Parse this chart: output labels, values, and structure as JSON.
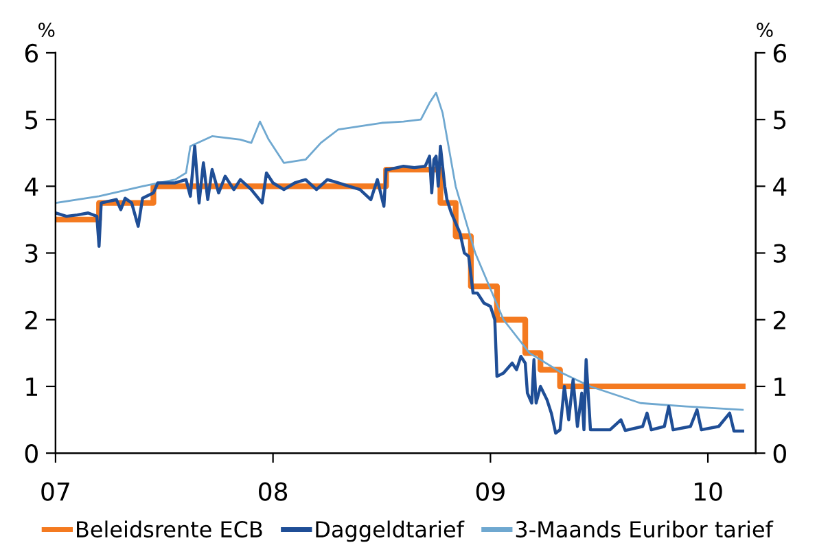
{
  "chart_data": {
    "type": "line",
    "ylabel": "%",
    "y2label": "%",
    "xlim": [
      2007.0,
      2010.22
    ],
    "xticks": [
      {
        "value": 2007,
        "label": "07"
      },
      {
        "value": 2008,
        "label": "08"
      },
      {
        "value": 2009,
        "label": "09"
      },
      {
        "value": 2010,
        "label": "10"
      }
    ],
    "ylim": [
      0,
      6
    ],
    "yticks": [
      0,
      1,
      2,
      3,
      4,
      5,
      6
    ],
    "y2lim": [
      0,
      6
    ],
    "y2ticks": [
      0,
      1,
      2,
      3,
      4,
      5,
      6
    ],
    "grid": false,
    "legend": "bottom",
    "marker": "none",
    "line_style": "solid",
    "series": [
      {
        "name": "Beleidsrente ECB",
        "type": "step",
        "color": "#f47a20",
        "x": [
          2007.0,
          2007.2,
          2007.45,
          2008.52,
          2008.77,
          2008.84,
          2008.91,
          2009.03,
          2009.16,
          2009.23,
          2009.32,
          2010.16
        ],
        "values": [
          3.5,
          3.75,
          4.0,
          4.25,
          3.75,
          3.25,
          2.5,
          2.0,
          1.5,
          1.25,
          1.0,
          1.0
        ]
      },
      {
        "name": "Daggeldtarief",
        "color": "#1f4e96",
        "x": [
          2007.0,
          2007.05,
          2007.1,
          2007.15,
          2007.19,
          2007.2,
          2007.21,
          2007.28,
          2007.3,
          2007.32,
          2007.35,
          2007.38,
          2007.4,
          2007.45,
          2007.47,
          2007.55,
          2007.6,
          2007.62,
          2007.64,
          2007.66,
          2007.68,
          2007.7,
          2007.72,
          2007.75,
          2007.78,
          2007.82,
          2007.85,
          2007.9,
          2007.95,
          2007.97,
          2008.0,
          2008.05,
          2008.1,
          2008.15,
          2008.2,
          2008.25,
          2008.3,
          2008.35,
          2008.4,
          2008.45,
          2008.48,
          2008.51,
          2008.52,
          2008.53,
          2008.6,
          2008.65,
          2008.7,
          2008.72,
          2008.73,
          2008.74,
          2008.75,
          2008.76,
          2008.77,
          2008.79,
          2008.8,
          2008.82,
          2008.84,
          2008.86,
          2008.88,
          2008.9,
          2008.92,
          2008.94,
          2008.97,
          2009.0,
          2009.02,
          2009.03,
          2009.06,
          2009.1,
          2009.12,
          2009.14,
          2009.16,
          2009.17,
          2009.19,
          2009.2,
          2009.21,
          2009.23,
          2009.26,
          2009.28,
          2009.3,
          2009.32,
          2009.34,
          2009.36,
          2009.38,
          2009.4,
          2009.42,
          2009.43,
          2009.44,
          2009.46,
          2009.5,
          2009.55,
          2009.6,
          2009.62,
          2009.7,
          2009.72,
          2009.74,
          2009.8,
          2009.82,
          2009.84,
          2009.92,
          2009.95,
          2009.97,
          2010.05,
          2010.1,
          2010.12,
          2010.16
        ],
        "values": [
          3.6,
          3.55,
          3.57,
          3.6,
          3.55,
          3.1,
          3.75,
          3.8,
          3.65,
          3.82,
          3.75,
          3.4,
          3.82,
          3.9,
          4.05,
          4.05,
          4.1,
          3.85,
          4.6,
          3.75,
          4.35,
          3.8,
          4.25,
          3.9,
          4.15,
          3.95,
          4.1,
          3.95,
          3.75,
          4.2,
          4.05,
          3.95,
          4.05,
          4.1,
          3.95,
          4.1,
          4.05,
          4.0,
          3.95,
          3.8,
          4.1,
          3.7,
          4.25,
          4.25,
          4.3,
          4.28,
          4.3,
          4.45,
          3.9,
          4.4,
          4.45,
          4.0,
          4.6,
          4.0,
          3.8,
          3.6,
          3.45,
          3.3,
          3.0,
          2.95,
          2.4,
          2.4,
          2.25,
          2.2,
          2.0,
          1.15,
          1.2,
          1.35,
          1.25,
          1.45,
          1.35,
          0.9,
          0.75,
          1.4,
          0.75,
          1.0,
          0.8,
          0.6,
          0.3,
          0.35,
          1.0,
          0.5,
          1.1,
          0.4,
          0.9,
          0.35,
          1.4,
          0.35,
          0.35,
          0.35,
          0.5,
          0.34,
          0.4,
          0.6,
          0.35,
          0.4,
          0.7,
          0.35,
          0.4,
          0.65,
          0.35,
          0.4,
          0.6,
          0.33,
          0.33
        ]
      },
      {
        "name": "3-Maands Euribor tarief",
        "color": "#6fa8d0",
        "x": [
          2007.0,
          2007.2,
          2007.4,
          2007.55,
          2007.6,
          2007.62,
          2007.72,
          2007.85,
          2007.9,
          2007.94,
          2007.98,
          2008.05,
          2008.15,
          2008.22,
          2008.3,
          2008.4,
          2008.5,
          2008.6,
          2008.68,
          2008.72,
          2008.75,
          2008.78,
          2008.84,
          2008.93,
          2009.06,
          2009.18,
          2009.33,
          2009.46,
          2009.69,
          2009.9,
          2010.16
        ],
        "values": [
          3.75,
          3.85,
          4.0,
          4.1,
          4.2,
          4.6,
          4.75,
          4.7,
          4.65,
          4.97,
          4.7,
          4.35,
          4.4,
          4.65,
          4.85,
          4.9,
          4.95,
          4.97,
          5.0,
          5.25,
          5.4,
          5.1,
          4.0,
          3.0,
          2.0,
          1.5,
          1.2,
          1.0,
          0.75,
          0.7,
          0.65
        ]
      }
    ]
  }
}
